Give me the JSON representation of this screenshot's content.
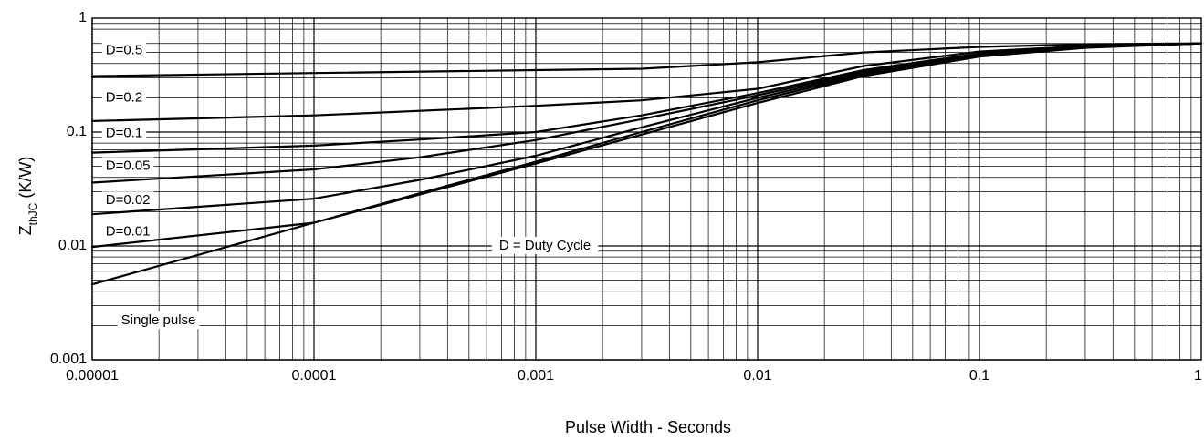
{
  "chart_data": {
    "type": "line",
    "xlabel": "Pulse Width - Seconds",
    "ylabel": {
      "main": "Z",
      "sub": "thJC",
      "unit": " (K/W)"
    },
    "x_scale": "log",
    "y_scale": "log",
    "xlim": [
      1e-05,
      1
    ],
    "ylim": [
      0.001,
      1
    ],
    "x_ticks": [
      {
        "value": 1e-05,
        "label": "0.00001"
      },
      {
        "value": 0.0001,
        "label": "0.0001"
      },
      {
        "value": 0.001,
        "label": "0.001"
      },
      {
        "value": 0.01,
        "label": "0.01"
      },
      {
        "value": 0.1,
        "label": "0.1"
      },
      {
        "value": 1,
        "label": "1"
      }
    ],
    "y_ticks": [
      {
        "value": 0.001,
        "label": "0.001"
      },
      {
        "value": 0.01,
        "label": "0.01"
      },
      {
        "value": 0.1,
        "label": "0.1"
      },
      {
        "value": 1,
        "label": "1"
      }
    ],
    "grid": true,
    "annotation": "D = Duty Cycle",
    "series": [
      {
        "name": "D=0.5",
        "x": [
          1e-05,
          0.0001,
          0.001,
          0.003,
          0.01,
          0.03,
          0.1,
          0.3,
          1
        ],
        "y": [
          0.31,
          0.33,
          0.35,
          0.36,
          0.41,
          0.5,
          0.56,
          0.59,
          0.6
        ]
      },
      {
        "name": "D=0.2",
        "x": [
          1e-05,
          0.0001,
          0.001,
          0.003,
          0.01,
          0.03,
          0.1,
          0.3,
          1
        ],
        "y": [
          0.125,
          0.14,
          0.17,
          0.19,
          0.24,
          0.38,
          0.51,
          0.57,
          0.6
        ]
      },
      {
        "name": "D=0.1",
        "x": [
          1e-05,
          0.0001,
          0.0003,
          0.001,
          0.003,
          0.01,
          0.03,
          0.1,
          0.3,
          1
        ],
        "y": [
          0.066,
          0.076,
          0.086,
          0.1,
          0.14,
          0.22,
          0.35,
          0.49,
          0.56,
          0.6
        ]
      },
      {
        "name": "D=0.05",
        "x": [
          1e-05,
          0.0001,
          0.0003,
          0.001,
          0.003,
          0.01,
          0.03,
          0.1,
          0.3,
          1
        ],
        "y": [
          0.036,
          0.047,
          0.06,
          0.085,
          0.13,
          0.21,
          0.34,
          0.48,
          0.56,
          0.6
        ]
      },
      {
        "name": "D=0.02",
        "x": [
          1e-05,
          0.0001,
          0.0003,
          0.001,
          0.003,
          0.01,
          0.03,
          0.1,
          0.3,
          1
        ],
        "y": [
          0.019,
          0.026,
          0.038,
          0.062,
          0.11,
          0.2,
          0.33,
          0.47,
          0.56,
          0.6
        ]
      },
      {
        "name": "D=0.01",
        "x": [
          1e-05,
          0.0001,
          0.0003,
          0.001,
          0.003,
          0.01,
          0.03,
          0.1,
          0.3,
          1
        ],
        "y": [
          0.0098,
          0.016,
          0.029,
          0.055,
          0.1,
          0.19,
          0.32,
          0.47,
          0.56,
          0.6
        ]
      },
      {
        "name": "Single pulse",
        "x": [
          1e-05,
          0.0001,
          0.001,
          0.003,
          0.01,
          0.03,
          0.1,
          0.3,
          1
        ],
        "y": [
          0.0046,
          0.016,
          0.053,
          0.095,
          0.18,
          0.31,
          0.46,
          0.55,
          0.6
        ]
      }
    ]
  }
}
